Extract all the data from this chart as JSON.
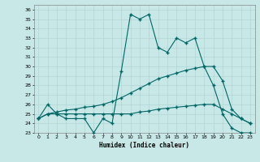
{
  "xlabel": "Humidex (Indice chaleur)",
  "bg_color": "#c8e8e8",
  "grid_color": "#b0d4d4",
  "line_color": "#006666",
  "xlim": [
    -0.5,
    23.5
  ],
  "ylim": [
    23,
    36.5
  ],
  "yticks": [
    23,
    24,
    25,
    26,
    27,
    28,
    29,
    30,
    31,
    32,
    33,
    34,
    35,
    36
  ],
  "xticks": [
    0,
    1,
    2,
    3,
    4,
    5,
    6,
    7,
    8,
    9,
    10,
    11,
    12,
    13,
    14,
    15,
    16,
    17,
    18,
    19,
    20,
    21,
    22,
    23
  ],
  "line1_x": [
    0,
    1,
    2,
    3,
    4,
    5,
    6,
    7,
    8,
    9,
    10,
    11,
    12,
    13,
    14,
    15,
    16,
    17,
    18,
    19,
    20,
    21,
    22,
    23
  ],
  "line1_y": [
    24.5,
    26.0,
    25.0,
    24.5,
    24.5,
    24.5,
    23.0,
    24.5,
    24.0,
    29.5,
    35.5,
    35.0,
    35.5,
    32.0,
    31.5,
    33.0,
    32.5,
    33.0,
    30.0,
    28.0,
    25.0,
    23.5,
    23.0,
    23.0
  ],
  "line2_x": [
    0,
    1,
    2,
    3,
    4,
    5,
    6,
    7,
    8,
    9,
    10,
    11,
    12,
    13,
    14,
    15,
    16,
    17,
    18,
    19,
    20,
    21,
    22,
    23
  ],
  "line2_y": [
    24.5,
    25.0,
    25.2,
    25.4,
    25.5,
    25.7,
    25.8,
    26.0,
    26.3,
    26.7,
    27.2,
    27.7,
    28.2,
    28.7,
    29.0,
    29.3,
    29.6,
    29.8,
    30.0,
    30.0,
    28.5,
    25.5,
    24.5,
    24.0
  ],
  "line3_x": [
    0,
    1,
    2,
    3,
    4,
    5,
    6,
    7,
    8,
    9,
    10,
    11,
    12,
    13,
    14,
    15,
    16,
    17,
    18,
    19,
    20,
    21,
    22,
    23
  ],
  "line3_y": [
    24.5,
    25.0,
    25.0,
    25.0,
    25.0,
    25.0,
    25.0,
    25.0,
    25.0,
    25.0,
    25.0,
    25.2,
    25.3,
    25.5,
    25.6,
    25.7,
    25.8,
    25.9,
    26.0,
    26.0,
    25.5,
    25.0,
    24.5,
    24.0
  ]
}
